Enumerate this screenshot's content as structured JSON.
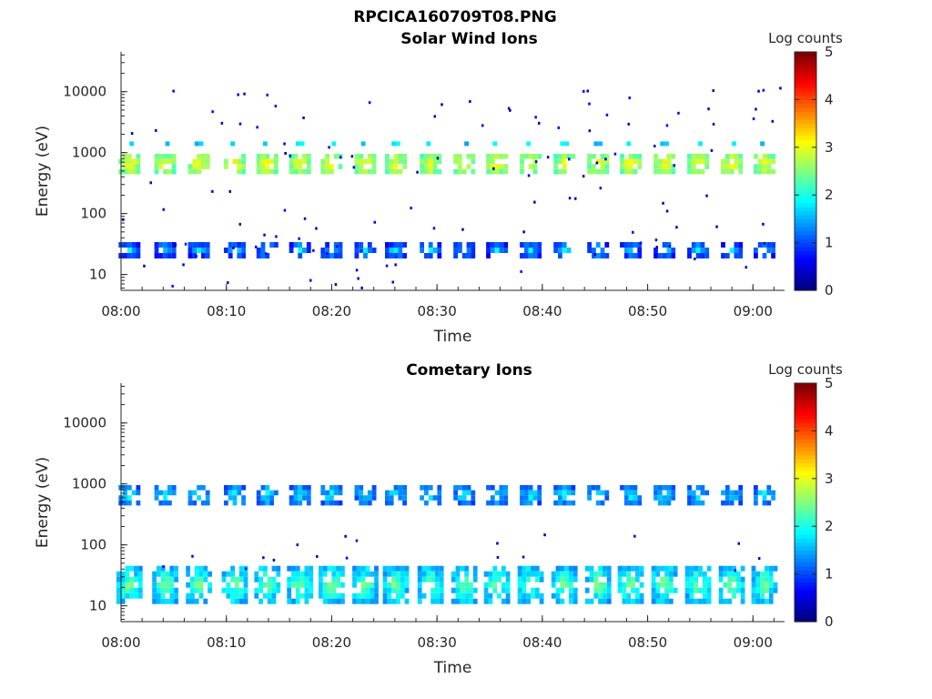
{
  "figure": {
    "title": "RPCICA160709T08.PNG"
  },
  "chart_data": [
    {
      "type": "heatmap",
      "title": "Solar Wind Ions",
      "xlabel": "Time",
      "ylabel": "Energy (eV)",
      "xlim_min": [
        0,
        63
      ],
      "x_tick_labels": [
        "08:00",
        "08:10",
        "08:20",
        "08:30",
        "08:40",
        "08:50",
        "09:00"
      ],
      "x_tick_values_min": [
        0,
        10,
        20,
        30,
        40,
        50,
        60
      ],
      "y_scale": "log",
      "ylim": [
        5.5,
        45000
      ],
      "y_tick_labels": [
        "10",
        "100",
        "1000",
        "10000"
      ],
      "y_tick_values": [
        10,
        100,
        1000,
        10000
      ],
      "colorbar": {
        "label": "Log counts",
        "range": [
          0,
          5
        ],
        "ticks": [
          "0",
          "1",
          "2",
          "3",
          "4",
          "5"
        ],
        "colormap": "jet"
      },
      "scans_min": [
        0.8,
        4.2,
        7.4,
        10.8,
        13.9,
        17.0,
        20.0,
        23.2,
        26.1,
        29.4,
        32.6,
        35.7,
        38.9,
        42.1,
        45.3,
        48.4,
        51.6,
        54.8,
        58.0,
        61.1
      ],
      "bands": [
        {
          "name": "peak",
          "energy_eV": 650,
          "log_counts": 2.6
        },
        {
          "name": "upper",
          "energy_eV": 1400,
          "log_counts": 1.5
        },
        {
          "name": "low",
          "energy_eV": 25,
          "log_counts": 1.0
        }
      ]
    },
    {
      "type": "heatmap",
      "title": "Cometary Ions",
      "xlabel": "Time",
      "ylabel": "Energy (eV)",
      "xlim_min": [
        0,
        63
      ],
      "x_tick_labels": [
        "08:00",
        "08:10",
        "08:20",
        "08:30",
        "08:40",
        "08:50",
        "09:00"
      ],
      "x_tick_values_min": [
        0,
        10,
        20,
        30,
        40,
        50,
        60
      ],
      "y_scale": "log",
      "ylim": [
        5.5,
        45000
      ],
      "y_tick_labels": [
        "10",
        "100",
        "1000",
        "10000"
      ],
      "y_tick_values": [
        10,
        100,
        1000,
        10000
      ],
      "colorbar": {
        "label": "Log counts",
        "range": [
          0,
          5
        ],
        "ticks": [
          "0",
          "1",
          "2",
          "3",
          "4",
          "5"
        ],
        "colormap": "jet"
      },
      "scans_min": [
        0.8,
        4.2,
        7.4,
        10.8,
        13.9,
        17.0,
        20.0,
        23.2,
        26.1,
        29.4,
        32.6,
        35.7,
        38.9,
        42.1,
        45.3,
        48.4,
        51.6,
        54.8,
        58.0,
        61.1
      ],
      "bands": [
        {
          "name": "peak",
          "energy_eV": 650,
          "log_counts": 1.3
        },
        {
          "name": "low",
          "energy_eV": 22,
          "log_counts": 1.8
        }
      ]
    }
  ]
}
